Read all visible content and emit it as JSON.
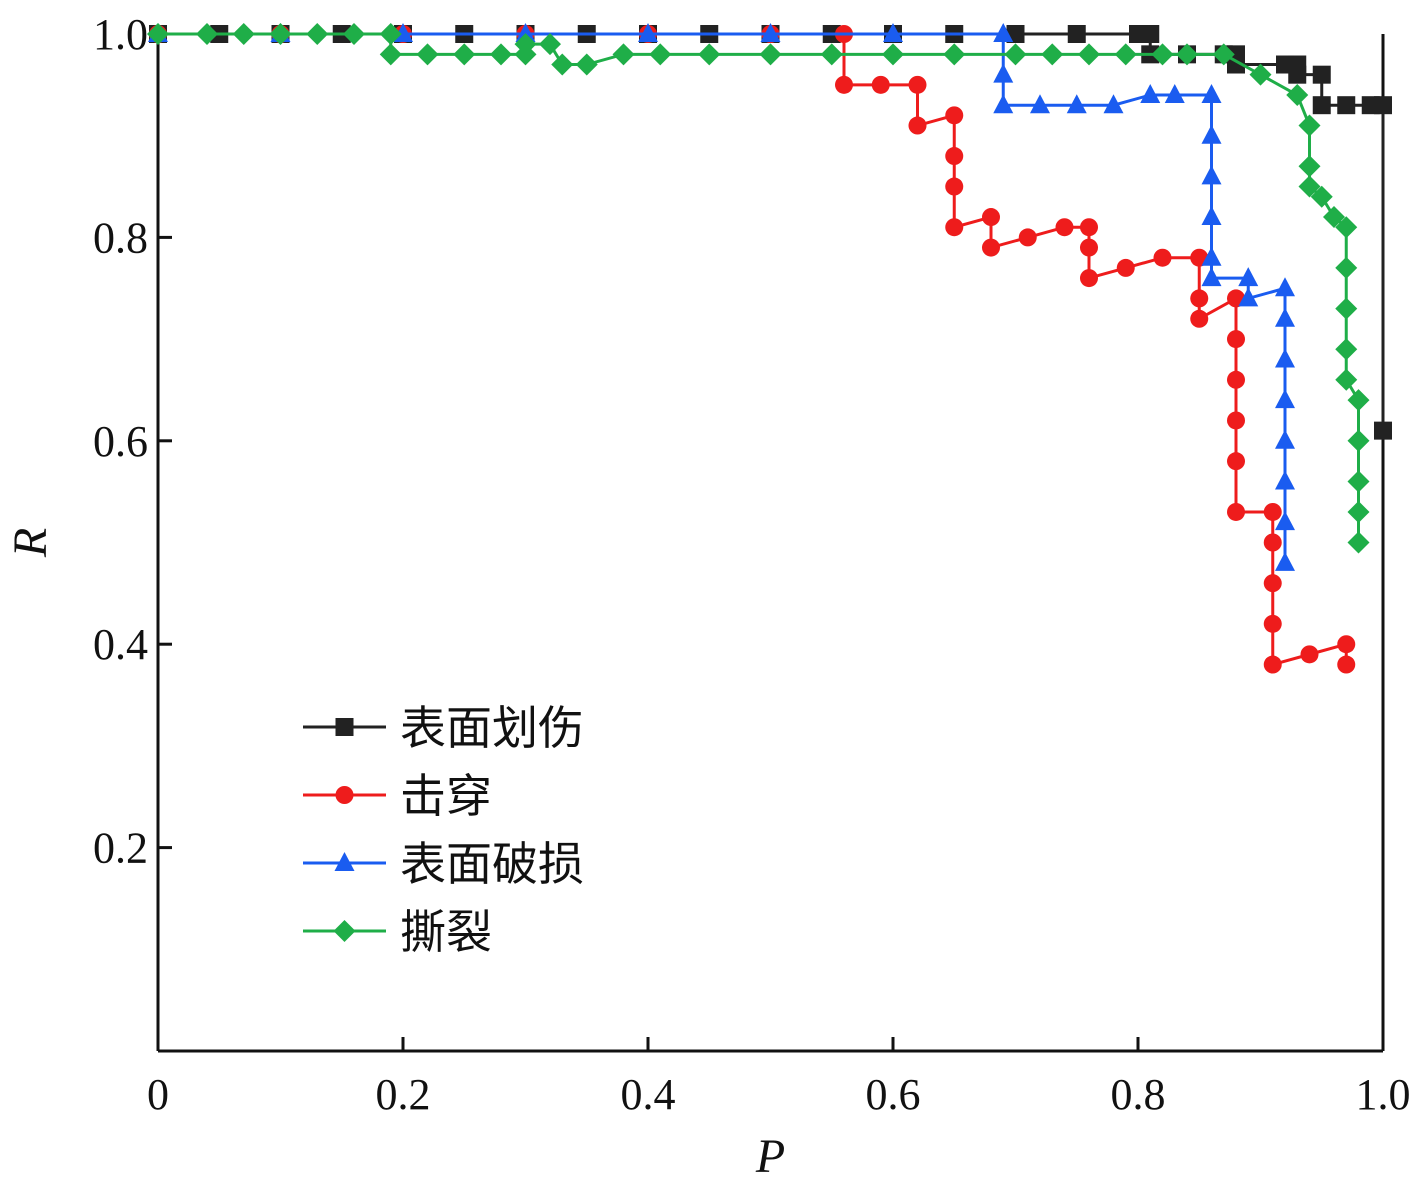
{
  "chart_data": {
    "type": "line",
    "title": "",
    "xlabel": "P",
    "ylabel": "R",
    "xlim": [
      0,
      1.0
    ],
    "ylim": [
      0,
      1.0
    ],
    "x_ticks": [
      {
        "value": 0,
        "label": "0"
      },
      {
        "value": 0.2,
        "label": "0.2"
      },
      {
        "value": 0.4,
        "label": "0.4"
      },
      {
        "value": 0.6,
        "label": "0.6"
      },
      {
        "value": 0.8,
        "label": "0.8"
      },
      {
        "value": 1.0,
        "label": "1.0"
      }
    ],
    "y_ticks": [
      {
        "value": 0.2,
        "label": "0.2"
      },
      {
        "value": 0.4,
        "label": "0.4"
      },
      {
        "value": 0.6,
        "label": "0.6"
      },
      {
        "value": 0.8,
        "label": "0.8"
      },
      {
        "value": 1.0,
        "label": "1.0"
      }
    ],
    "grid": false,
    "legend_position": "lower-left",
    "series": [
      {
        "name": "表面划伤",
        "color": "#222222",
        "marker": "square",
        "points": [
          [
            0.0,
            1.0
          ],
          [
            0.05,
            1.0
          ],
          [
            0.1,
            1.0
          ],
          [
            0.15,
            1.0
          ],
          [
            0.2,
            1.0
          ],
          [
            0.25,
            1.0
          ],
          [
            0.3,
            1.0
          ],
          [
            0.35,
            1.0
          ],
          [
            0.4,
            1.0
          ],
          [
            0.45,
            1.0
          ],
          [
            0.5,
            1.0
          ],
          [
            0.55,
            1.0
          ],
          [
            0.6,
            1.0
          ],
          [
            0.65,
            1.0
          ],
          [
            0.7,
            1.0
          ],
          [
            0.75,
            1.0
          ],
          [
            0.8,
            1.0
          ],
          [
            0.81,
            1.0
          ],
          [
            0.81,
            0.98
          ],
          [
            0.84,
            0.98
          ],
          [
            0.87,
            0.98
          ],
          [
            0.88,
            0.98
          ],
          [
            0.88,
            0.97
          ],
          [
            0.92,
            0.97
          ],
          [
            0.93,
            0.97
          ],
          [
            0.93,
            0.96
          ],
          [
            0.95,
            0.96
          ],
          [
            0.95,
            0.93
          ],
          [
            0.97,
            0.93
          ],
          [
            0.99,
            0.93
          ],
          [
            1.0,
            0.93
          ],
          [
            1.0,
            0.61
          ]
        ]
      },
      {
        "name": "击穿",
        "color": "#ee1c1c",
        "marker": "circle",
        "points": [
          [
            0.0,
            1.0
          ],
          [
            0.1,
            1.0
          ],
          [
            0.2,
            1.0
          ],
          [
            0.3,
            1.0
          ],
          [
            0.4,
            1.0
          ],
          [
            0.5,
            1.0
          ],
          [
            0.56,
            1.0
          ],
          [
            0.56,
            0.95
          ],
          [
            0.59,
            0.95
          ],
          [
            0.62,
            0.95
          ],
          [
            0.62,
            0.91
          ],
          [
            0.65,
            0.92
          ],
          [
            0.65,
            0.88
          ],
          [
            0.65,
            0.85
          ],
          [
            0.65,
            0.81
          ],
          [
            0.68,
            0.82
          ],
          [
            0.68,
            0.79
          ],
          [
            0.71,
            0.8
          ],
          [
            0.74,
            0.81
          ],
          [
            0.76,
            0.81
          ],
          [
            0.76,
            0.79
          ],
          [
            0.76,
            0.76
          ],
          [
            0.79,
            0.77
          ],
          [
            0.82,
            0.78
          ],
          [
            0.85,
            0.78
          ],
          [
            0.85,
            0.74
          ],
          [
            0.85,
            0.72
          ],
          [
            0.88,
            0.74
          ],
          [
            0.88,
            0.7
          ],
          [
            0.88,
            0.66
          ],
          [
            0.88,
            0.62
          ],
          [
            0.88,
            0.58
          ],
          [
            0.88,
            0.53
          ],
          [
            0.91,
            0.53
          ],
          [
            0.91,
            0.5
          ],
          [
            0.91,
            0.46
          ],
          [
            0.91,
            0.42
          ],
          [
            0.91,
            0.38
          ],
          [
            0.94,
            0.39
          ],
          [
            0.97,
            0.4
          ],
          [
            0.97,
            0.38
          ]
        ]
      },
      {
        "name": "表面破损",
        "color": "#1a5cf0",
        "marker": "triangle",
        "points": [
          [
            0.0,
            1.0
          ],
          [
            0.1,
            1.0
          ],
          [
            0.2,
            1.0
          ],
          [
            0.3,
            1.0
          ],
          [
            0.4,
            1.0
          ],
          [
            0.5,
            1.0
          ],
          [
            0.6,
            1.0
          ],
          [
            0.69,
            1.0
          ],
          [
            0.69,
            0.96
          ],
          [
            0.69,
            0.93
          ],
          [
            0.72,
            0.93
          ],
          [
            0.75,
            0.93
          ],
          [
            0.78,
            0.93
          ],
          [
            0.81,
            0.94
          ],
          [
            0.83,
            0.94
          ],
          [
            0.86,
            0.94
          ],
          [
            0.86,
            0.9
          ],
          [
            0.86,
            0.86
          ],
          [
            0.86,
            0.82
          ],
          [
            0.86,
            0.78
          ],
          [
            0.86,
            0.76
          ],
          [
            0.89,
            0.76
          ],
          [
            0.89,
            0.74
          ],
          [
            0.92,
            0.75
          ],
          [
            0.92,
            0.72
          ],
          [
            0.92,
            0.68
          ],
          [
            0.92,
            0.64
          ],
          [
            0.92,
            0.6
          ],
          [
            0.92,
            0.56
          ],
          [
            0.92,
            0.52
          ],
          [
            0.92,
            0.48
          ]
        ]
      },
      {
        "name": "撕裂",
        "color": "#1fae48",
        "marker": "diamond",
        "points": [
          [
            0.0,
            1.0
          ],
          [
            0.04,
            1.0
          ],
          [
            0.07,
            1.0
          ],
          [
            0.1,
            1.0
          ],
          [
            0.13,
            1.0
          ],
          [
            0.16,
            1.0
          ],
          [
            0.19,
            1.0
          ],
          [
            0.19,
            0.98
          ],
          [
            0.22,
            0.98
          ],
          [
            0.25,
            0.98
          ],
          [
            0.28,
            0.98
          ],
          [
            0.3,
            0.98
          ],
          [
            0.3,
            0.99
          ],
          [
            0.32,
            0.99
          ],
          [
            0.33,
            0.97
          ],
          [
            0.35,
            0.97
          ],
          [
            0.38,
            0.98
          ],
          [
            0.41,
            0.98
          ],
          [
            0.45,
            0.98
          ],
          [
            0.5,
            0.98
          ],
          [
            0.55,
            0.98
          ],
          [
            0.6,
            0.98
          ],
          [
            0.65,
            0.98
          ],
          [
            0.7,
            0.98
          ],
          [
            0.73,
            0.98
          ],
          [
            0.76,
            0.98
          ],
          [
            0.79,
            0.98
          ],
          [
            0.82,
            0.98
          ],
          [
            0.84,
            0.98
          ],
          [
            0.87,
            0.98
          ],
          [
            0.9,
            0.96
          ],
          [
            0.93,
            0.94
          ],
          [
            0.94,
            0.91
          ],
          [
            0.94,
            0.87
          ],
          [
            0.94,
            0.85
          ],
          [
            0.95,
            0.84
          ],
          [
            0.96,
            0.82
          ],
          [
            0.97,
            0.81
          ],
          [
            0.97,
            0.77
          ],
          [
            0.97,
            0.73
          ],
          [
            0.97,
            0.69
          ],
          [
            0.97,
            0.66
          ],
          [
            0.98,
            0.64
          ],
          [
            0.98,
            0.6
          ],
          [
            0.98,
            0.56
          ],
          [
            0.98,
            0.53
          ],
          [
            0.98,
            0.5
          ]
        ]
      }
    ]
  }
}
